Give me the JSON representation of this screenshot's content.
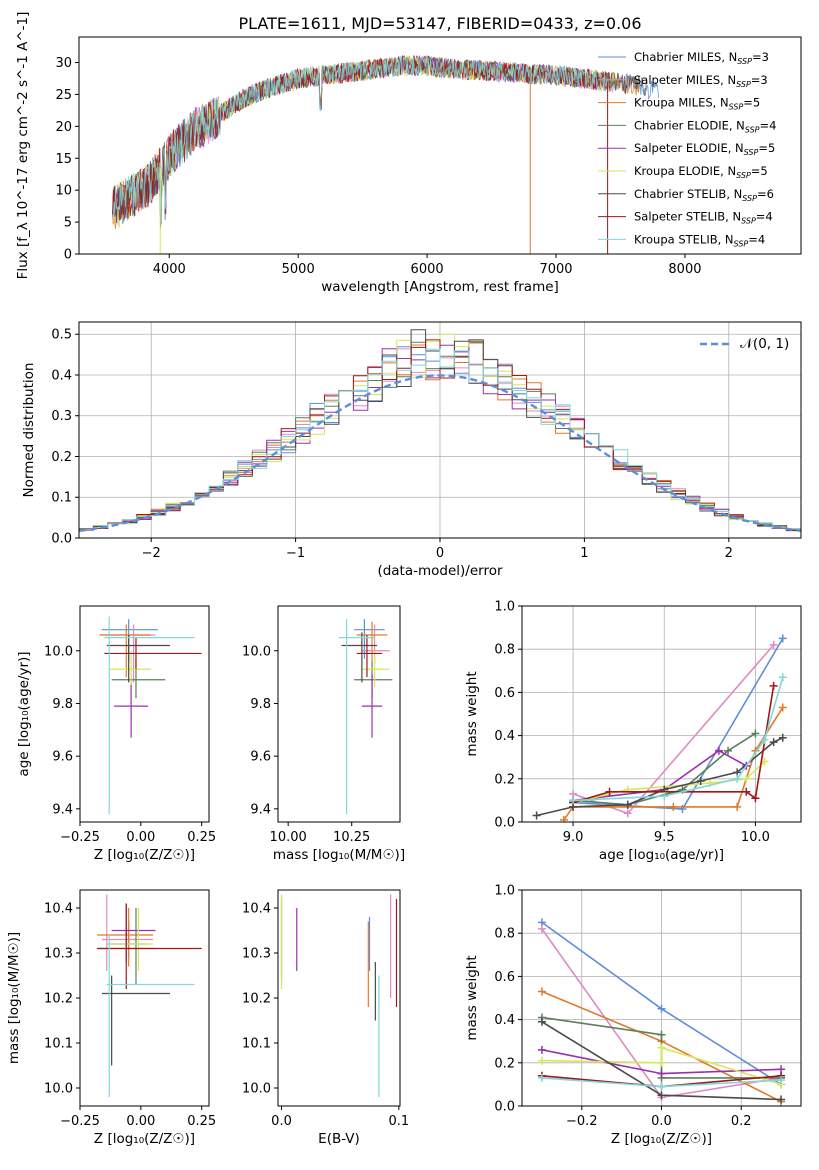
{
  "colors": {
    "Chabrier MILES": "#5b8fd9",
    "Salpeter MILES": "#e08ac4",
    "Kroupa MILES": "#e07a2a",
    "Chabrier ELODIE": "#5c7e5c",
    "Salpeter ELODIE": "#9c2fb0",
    "Kroupa ELODIE": "#d8e65a",
    "Chabrier STELIB": "#4a4a4a",
    "Salpeter STELIB": "#a01818",
    "Kroupa STELIB": "#7fd8dc"
  },
  "chart_data": [
    {
      "id": "spectrum",
      "type": "line",
      "title": "PLATE=1611, MJD=53147, FIBERID=0433, z=0.06",
      "xlabel": "wavelength [Angstrom, rest frame]",
      "ylabel": "Flux [f_λ 10^-17 erg cm^-2 s^-1 A^-1]",
      "xlim": [
        3300,
        8900
      ],
      "ylim": [
        0,
        34
      ],
      "xticks": [
        4000,
        5000,
        6000,
        7000,
        8000
      ],
      "yticks": [
        0,
        5,
        10,
        15,
        20,
        25,
        30
      ],
      "grid": false,
      "legend_position": "right",
      "legend": [
        {
          "name": "Chabrier MILES",
          "nssp": "3"
        },
        {
          "name": "Salpeter MILES",
          "nssp": "3"
        },
        {
          "name": "Kroupa MILES",
          "nssp": "5"
        },
        {
          "name": "Chabrier ELODIE",
          "nssp": "4"
        },
        {
          "name": "Salpeter ELODIE",
          "nssp": "5"
        },
        {
          "name": "Kroupa ELODIE",
          "nssp": "5"
        },
        {
          "name": "Chabrier STELIB",
          "nssp": "6"
        },
        {
          "name": "Salpeter STELIB",
          "nssp": "4"
        },
        {
          "name": "Kroupa STELIB",
          "nssp": "4"
        }
      ],
      "continuum": {
        "x": [
          3560,
          3700,
          3850,
          3950,
          4050,
          4200,
          4300,
          4400,
          4550,
          4700,
          4850,
          5000,
          5200,
          5400,
          5600,
          5800,
          6000,
          6200,
          6400,
          6600,
          6800,
          7000,
          7200,
          7400,
          7600,
          7800
        ],
        "y": [
          7,
          9,
          11,
          14,
          16.5,
          19.5,
          20.5,
          22,
          24,
          25.5,
          26.5,
          27.5,
          28,
          28.5,
          29,
          29.5,
          29.5,
          29,
          28.8,
          28.5,
          28.2,
          28,
          27.5,
          27,
          26.5,
          25.5
        ]
      }
    },
    {
      "id": "residuals",
      "type": "histogram",
      "xlabel": "(data-model)/error",
      "ylabel": "Normed distribution",
      "xlim": [
        -2.5,
        2.5
      ],
      "ylim": [
        0,
        0.53
      ],
      "xticks": [
        -2,
        -1,
        0,
        1,
        2
      ],
      "yticks": [
        0.0,
        0.1,
        0.2,
        0.3,
        0.4,
        0.5
      ],
      "grid": true,
      "legend_position": "top-right",
      "legend": "𝒩(0, 1)",
      "bin_width": 0.1
    },
    {
      "id": "age-vs-z",
      "type": "errorbar",
      "xlabel": "Z [log₁₀(Z/Z☉)]",
      "ylabel": "age  [log₁₀(age/yr)]",
      "xlim": [
        -0.25,
        0.28
      ],
      "ylim": [
        9.35,
        10.17
      ],
      "xticks": [
        -0.25,
        0.0,
        0.25
      ],
      "yticks": [
        9.4,
        9.6,
        9.8,
        10.0
      ],
      "grid": false,
      "points": [
        {
          "model": "Chabrier MILES",
          "x": -0.05,
          "xlo": -0.16,
          "xhi": 0.07,
          "y": 10.08,
          "ylo": 9.96,
          "yhi": 10.12
        },
        {
          "model": "Salpeter MILES",
          "x": -0.03,
          "xlo": -0.15,
          "xhi": 0.06,
          "y": 10.06,
          "ylo": 9.88,
          "yhi": 10.1
        },
        {
          "model": "Kroupa MILES",
          "x": -0.06,
          "xlo": -0.17,
          "xhi": 0.04,
          "y": 10.06,
          "ylo": 9.9,
          "yhi": 10.1
        },
        {
          "model": "Chabrier ELODIE",
          "x": -0.02,
          "xlo": -0.12,
          "xhi": 0.1,
          "y": 9.89,
          "ylo": 9.82,
          "yhi": 9.97
        },
        {
          "model": "Salpeter ELODIE",
          "x": -0.04,
          "xlo": -0.11,
          "xhi": 0.03,
          "y": 9.79,
          "ylo": 9.67,
          "yhi": 9.9
        },
        {
          "model": "Kroupa ELODIE",
          "x": -0.04,
          "xlo": -0.13,
          "xhi": 0.04,
          "y": 9.93,
          "ylo": 9.87,
          "yhi": 10.0
        },
        {
          "model": "Chabrier STELIB",
          "x": -0.05,
          "xlo": -0.14,
          "xhi": 0.12,
          "y": 10.02,
          "ylo": 9.88,
          "yhi": 10.06
        },
        {
          "model": "Salpeter STELIB",
          "x": -0.02,
          "xlo": -0.15,
          "xhi": 0.25,
          "y": 9.99,
          "ylo": 9.93,
          "yhi": 10.05
        },
        {
          "model": "Kroupa STELIB",
          "x": -0.13,
          "xlo": -0.15,
          "xhi": 0.22,
          "y": 10.05,
          "ylo": 9.38,
          "yhi": 10.13
        }
      ]
    },
    {
      "id": "age-vs-mass",
      "type": "errorbar",
      "xlabel": "mass [log₁₀(M/M☉)]",
      "ylabel": "",
      "xlim": [
        9.96,
        10.44
      ],
      "ylim": [
        9.35,
        10.17
      ],
      "xticks": [
        10.0,
        10.25
      ],
      "yticks": [
        9.4,
        9.6,
        9.8,
        10.0
      ],
      "grid": false,
      "points": [
        {
          "model": "Chabrier MILES",
          "x": 10.3,
          "xlo": 10.26,
          "xhi": 10.38,
          "y": 10.08,
          "ylo": 9.97,
          "yhi": 10.12
        },
        {
          "model": "Salpeter MILES",
          "x": 10.34,
          "xlo": 10.29,
          "xhi": 10.4,
          "y": 10.0,
          "ylo": 9.95,
          "yhi": 10.1
        },
        {
          "model": "Kroupa MILES",
          "x": 10.33,
          "xlo": 10.27,
          "xhi": 10.39,
          "y": 10.06,
          "ylo": 9.96,
          "yhi": 10.11
        },
        {
          "model": "Chabrier ELODIE",
          "x": 10.33,
          "xlo": 10.26,
          "xhi": 10.41,
          "y": 9.89,
          "ylo": 9.82,
          "yhi": 9.96
        },
        {
          "model": "Salpeter ELODIE",
          "x": 10.33,
          "xlo": 10.29,
          "xhi": 10.37,
          "y": 9.79,
          "ylo": 9.67,
          "yhi": 9.91
        },
        {
          "model": "Kroupa ELODIE",
          "x": 10.34,
          "xlo": 10.29,
          "xhi": 10.4,
          "y": 9.93,
          "ylo": 9.86,
          "yhi": 10.0
        },
        {
          "model": "Chabrier STELIB",
          "x": 10.29,
          "xlo": 10.21,
          "xhi": 10.35,
          "y": 10.02,
          "ylo": 9.88,
          "yhi": 10.07
        },
        {
          "model": "Salpeter STELIB",
          "x": 10.31,
          "xlo": 10.27,
          "xhi": 10.37,
          "y": 9.99,
          "ylo": 9.9,
          "yhi": 10.06
        },
        {
          "model": "Kroupa STELIB",
          "x": 10.23,
          "xlo": 10.2,
          "xhi": 10.34,
          "y": 10.05,
          "ylo": 9.38,
          "yhi": 10.12
        }
      ]
    },
    {
      "id": "weight-vs-age",
      "type": "line",
      "xlabel": "age  [log₁₀(age/yr)]",
      "ylabel": "mass weight",
      "xlim": [
        8.72,
        10.25
      ],
      "ylim": [
        0,
        1
      ],
      "xticks": [
        9.0,
        9.5,
        10.0
      ],
      "yticks": [
        0.0,
        0.2,
        0.4,
        0.6,
        0.8,
        1.0
      ],
      "grid": true,
      "series": [
        {
          "model": "Chabrier MILES",
          "x": [
            9.0,
            9.6,
            10.15
          ],
          "y": [
            0.09,
            0.06,
            0.85
          ]
        },
        {
          "model": "Salpeter MILES",
          "x": [
            9.0,
            9.3,
            10.1
          ],
          "y": [
            0.13,
            0.04,
            0.82
          ]
        },
        {
          "model": "Kroupa MILES",
          "x": [
            8.95,
            9.0,
            9.55,
            9.9,
            10.0,
            10.15
          ],
          "y": [
            0.01,
            0.07,
            0.07,
            0.07,
            0.33,
            0.53
          ]
        },
        {
          "model": "Chabrier ELODIE",
          "x": [
            9.0,
            9.3,
            9.6,
            9.85,
            10.0
          ],
          "y": [
            0.1,
            0.08,
            0.15,
            0.33,
            0.41
          ]
        },
        {
          "model": "Salpeter ELODIE",
          "x": [
            9.0,
            9.5,
            9.8,
            9.95
          ],
          "y": [
            0.1,
            0.15,
            0.33,
            0.26
          ]
        },
        {
          "model": "Kroupa ELODIE",
          "x": [
            9.0,
            9.3,
            9.75,
            9.95,
            10.05
          ],
          "y": [
            0.09,
            0.15,
            0.18,
            0.2,
            0.28
          ]
        },
        {
          "model": "Chabrier STELIB",
          "x": [
            8.8,
            9.0,
            9.3,
            9.5,
            9.7,
            9.9,
            10.1,
            10.15
          ],
          "y": [
            0.03,
            0.07,
            0.08,
            0.15,
            0.19,
            0.23,
            0.37,
            0.39
          ]
        },
        {
          "model": "Salpeter STELIB",
          "x": [
            9.0,
            9.2,
            9.95,
            10.0,
            10.1
          ],
          "y": [
            0.09,
            0.14,
            0.14,
            0.11,
            0.63
          ]
        },
        {
          "model": "Kroupa STELIB",
          "x": [
            9.0,
            9.5,
            9.9,
            10.05,
            10.15
          ],
          "y": [
            0.1,
            0.12,
            0.2,
            0.38,
            0.67
          ]
        }
      ]
    },
    {
      "id": "mass-vs-z",
      "type": "errorbar",
      "xlabel": "Z [log₁₀(Z/Z☉)]",
      "ylabel": "mass [log₁₀(M/M☉)]",
      "xlim": [
        -0.25,
        0.28
      ],
      "ylim": [
        9.96,
        10.44
      ],
      "xticks": [
        -0.25,
        0.0,
        0.25
      ],
      "yticks": [
        10.0,
        10.1,
        10.2,
        10.3,
        10.4
      ],
      "grid": false,
      "points": [
        {
          "model": "Chabrier MILES",
          "x": -0.05,
          "xlo": -0.17,
          "xhi": 0.06,
          "y": 10.31,
          "ylo": 10.29,
          "yhi": 10.37
        },
        {
          "model": "Salpeter MILES",
          "x": -0.14,
          "xlo": -0.16,
          "xhi": 0.05,
          "y": 10.33,
          "ylo": 10.26,
          "yhi": 10.43
        },
        {
          "model": "Kroupa MILES",
          "x": -0.05,
          "xlo": -0.18,
          "xhi": 0.05,
          "y": 10.34,
          "ylo": 10.27,
          "yhi": 10.4
        },
        {
          "model": "Chabrier ELODIE",
          "x": -0.02,
          "xlo": -0.14,
          "xhi": 0.02,
          "y": 10.32,
          "ylo": 10.23,
          "yhi": 10.4
        },
        {
          "model": "Salpeter ELODIE",
          "x": -0.06,
          "xlo": -0.12,
          "xhi": 0.06,
          "y": 10.35,
          "ylo": 10.28,
          "yhi": 10.41
        },
        {
          "model": "Kroupa ELODIE",
          "x": -0.01,
          "xlo": -0.14,
          "xhi": 0.05,
          "y": 10.32,
          "ylo": 10.26,
          "yhi": 10.4
        },
        {
          "model": "Chabrier STELIB",
          "x": -0.12,
          "xlo": -0.16,
          "xhi": 0.12,
          "y": 10.21,
          "ylo": 10.05,
          "yhi": 10.25
        },
        {
          "model": "Salpeter STELIB",
          "x": -0.06,
          "xlo": -0.18,
          "xhi": 0.25,
          "y": 10.31,
          "ylo": 10.22,
          "yhi": 10.41
        },
        {
          "model": "Kroupa STELIB",
          "x": -0.13,
          "xlo": -0.14,
          "xhi": 0.22,
          "y": 10.23,
          "ylo": 9.98,
          "yhi": 10.34
        }
      ]
    },
    {
      "id": "mass-vs-ebv",
      "type": "errorbar",
      "xlabel": "E(B-V)",
      "ylabel": "",
      "xlim": [
        -0.003,
        0.101
      ],
      "ylim": [
        9.96,
        10.44
      ],
      "xticks": [
        0.0,
        0.1
      ],
      "yticks": [
        10.0,
        10.1,
        10.2,
        10.3,
        10.4
      ],
      "grid": false,
      "points": [
        {
          "model": "Chabrier MILES",
          "x": 0.075,
          "xlo": 0.075,
          "xhi": 0.075,
          "y": 10.31,
          "ylo": 10.26,
          "yhi": 10.38
        },
        {
          "model": "Salpeter MILES",
          "x": 0.093,
          "xlo": 0.093,
          "xhi": 0.093,
          "y": 10.33,
          "ylo": 10.2,
          "yhi": 10.43
        },
        {
          "model": "Kroupa MILES",
          "x": 0.074,
          "xlo": 0.074,
          "xhi": 0.074,
          "y": 10.3,
          "ylo": 10.18,
          "yhi": 10.37
        },
        {
          "model": "Chabrier ELODIE",
          "x": 0.0,
          "xlo": 0.0,
          "xhi": 0.0,
          "y": 10.32,
          "ylo": 10.24,
          "yhi": 10.42
        },
        {
          "model": "Salpeter ELODIE",
          "x": 0.013,
          "xlo": 0.013,
          "xhi": 0.013,
          "y": 10.33,
          "ylo": 10.26,
          "yhi": 10.4
        },
        {
          "model": "Kroupa ELODIE",
          "x": 0.0,
          "xlo": 0.0,
          "xhi": 0.0,
          "y": 10.33,
          "ylo": 10.22,
          "yhi": 10.43
        },
        {
          "model": "Chabrier STELIB",
          "x": 0.08,
          "xlo": 0.08,
          "xhi": 0.08,
          "y": 10.22,
          "ylo": 10.15,
          "yhi": 10.28
        },
        {
          "model": "Salpeter STELIB",
          "x": 0.098,
          "xlo": 0.098,
          "xhi": 0.098,
          "y": 10.31,
          "ylo": 10.18,
          "yhi": 10.42
        },
        {
          "model": "Kroupa STELIB",
          "x": 0.083,
          "xlo": 0.083,
          "xhi": 0.083,
          "y": 10.15,
          "ylo": 9.98,
          "yhi": 10.25
        }
      ]
    },
    {
      "id": "weight-vs-z",
      "type": "line",
      "xlabel": "Z [log₁₀(Z/Z☉)]",
      "ylabel": "mass weight",
      "xlim": [
        -0.35,
        0.35
      ],
      "ylim": [
        0,
        1
      ],
      "xticks": [
        -0.2,
        0.0,
        0.2
      ],
      "yticks": [
        0.0,
        0.2,
        0.4,
        0.6,
        0.8,
        1.0
      ],
      "grid": true,
      "series": [
        {
          "model": "Chabrier MILES",
          "x": [
            -0.3,
            0.0,
            0.3
          ],
          "y": [
            0.85,
            0.45,
            0.1
          ]
        },
        {
          "model": "Salpeter MILES",
          "x": [
            -0.3,
            0.0,
            0.3
          ],
          "y": [
            0.82,
            0.04,
            0.13
          ]
        },
        {
          "model": "Kroupa MILES",
          "x": [
            -0.3,
            0.0,
            0.3
          ],
          "y": [
            0.53,
            0.3,
            0.02
          ]
        },
        {
          "model": "Chabrier ELODIE",
          "x": [
            -0.3,
            0.0,
            0.0,
            0.3
          ],
          "y": [
            0.41,
            0.33,
            0.13,
            0.13
          ]
        },
        {
          "model": "Salpeter ELODIE",
          "x": [
            -0.3,
            0.0,
            0.3
          ],
          "y": [
            0.26,
            0.15,
            0.17
          ]
        },
        {
          "model": "Kroupa ELODIE",
          "x": [
            -0.3,
            0.0,
            0.0,
            0.3
          ],
          "y": [
            0.21,
            0.2,
            0.27,
            0.1
          ]
        },
        {
          "model": "Chabrier STELIB",
          "x": [
            -0.3,
            0.0,
            0.3
          ],
          "y": [
            0.39,
            0.05,
            0.03
          ]
        },
        {
          "model": "Salpeter STELIB",
          "x": [
            -0.3,
            0.0,
            0.3
          ],
          "y": [
            0.14,
            0.09,
            0.14
          ]
        },
        {
          "model": "Kroupa STELIB",
          "x": [
            -0.3,
            0.0,
            0.3
          ],
          "y": [
            0.13,
            0.09,
            0.12
          ]
        }
      ]
    }
  ]
}
